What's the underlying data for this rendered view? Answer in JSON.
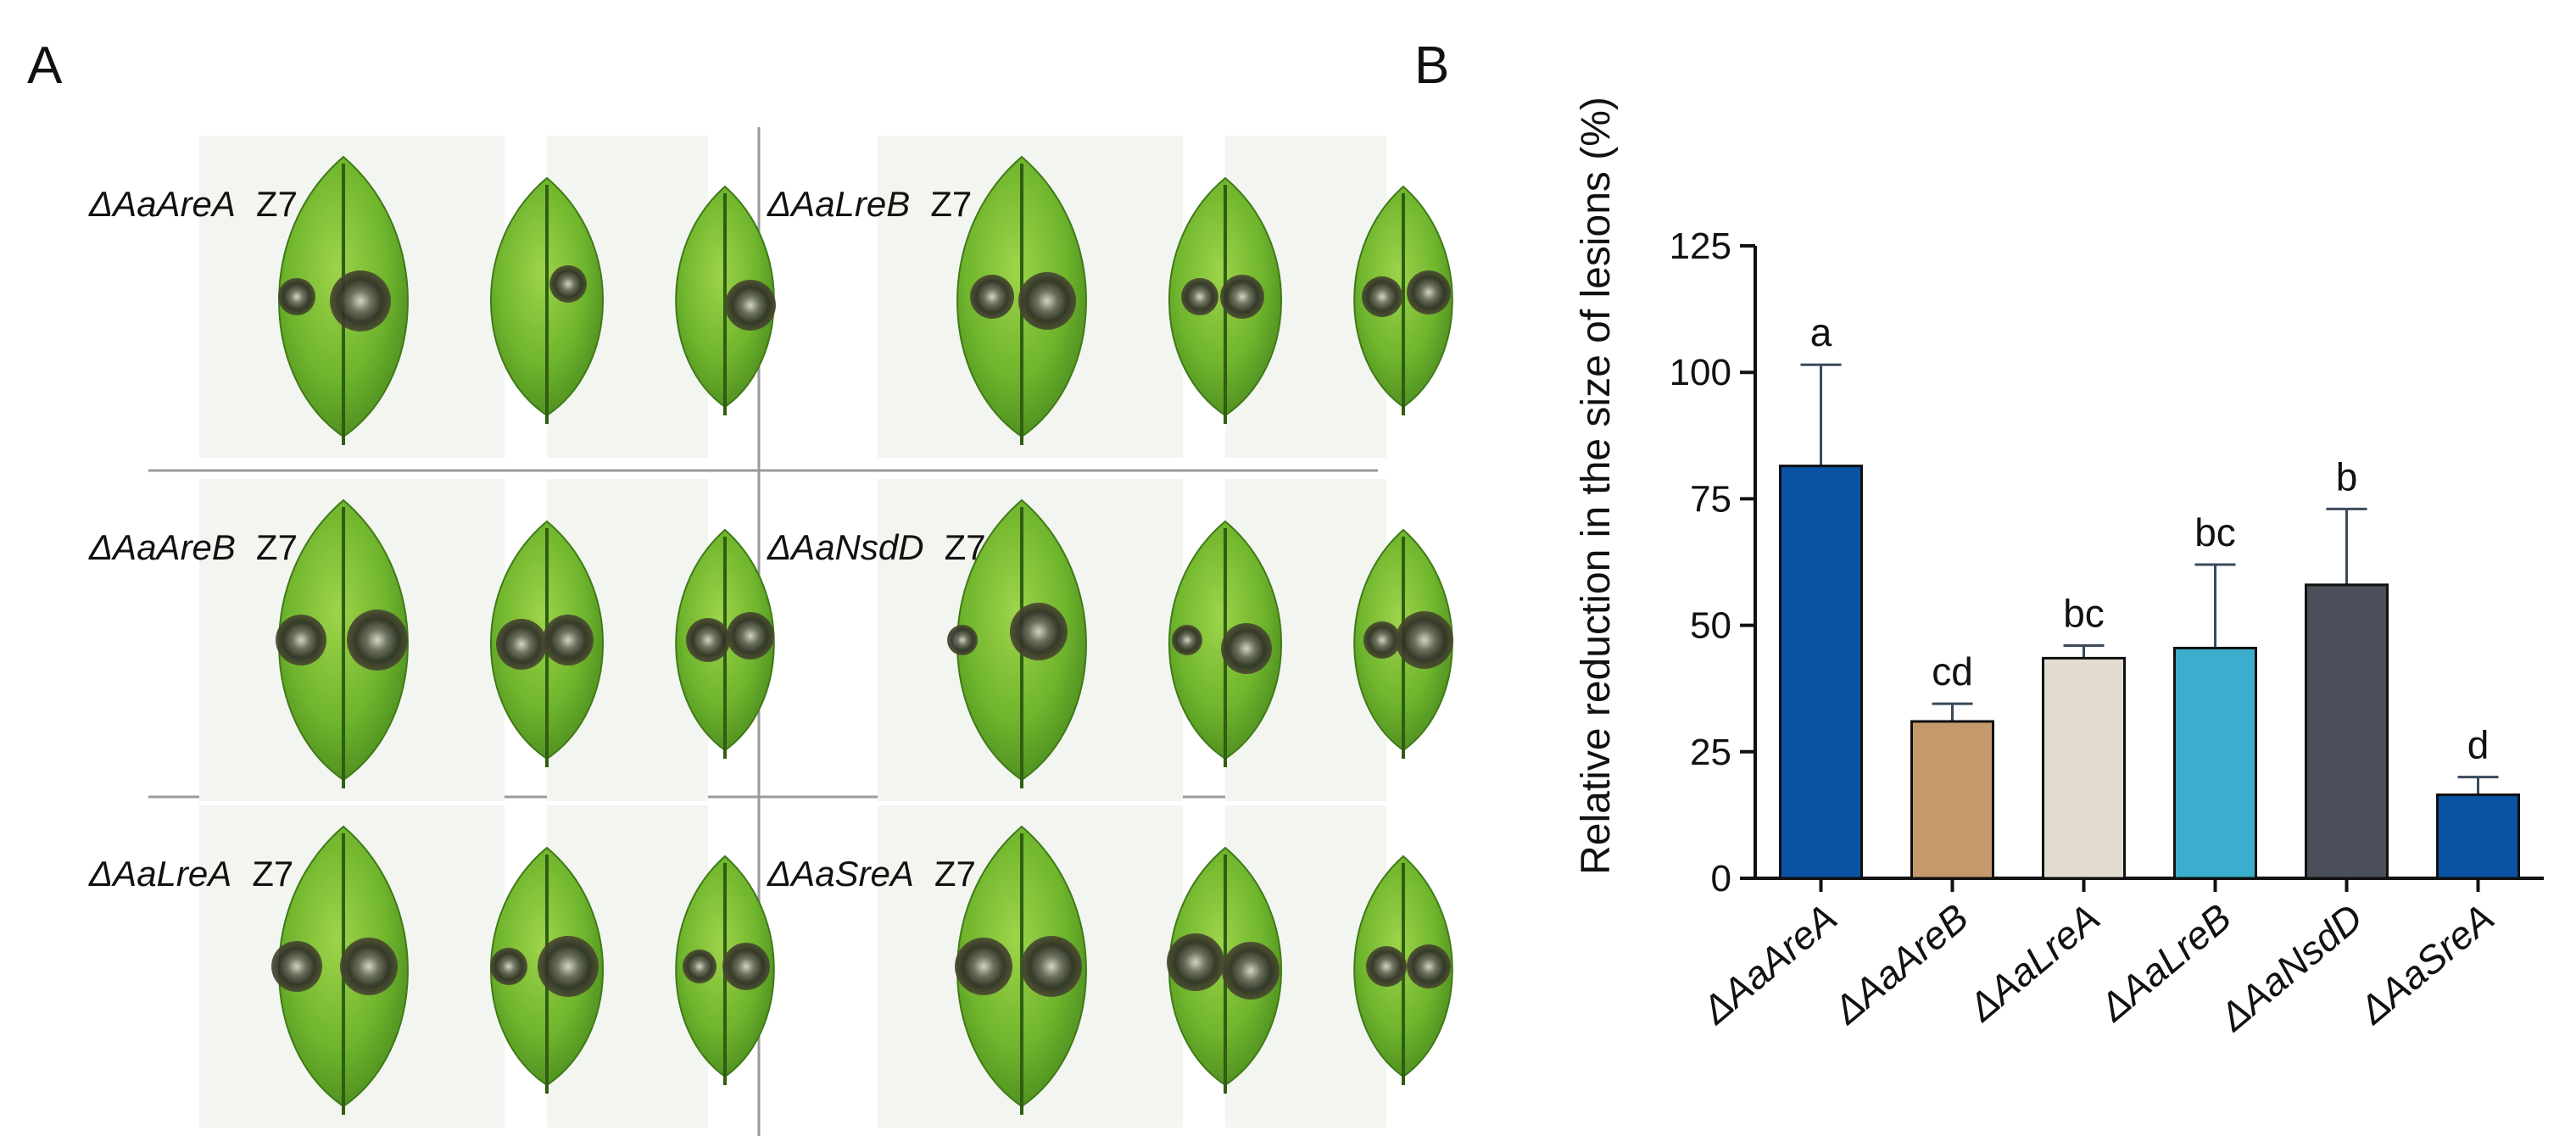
{
  "panel_a": {
    "letter": "A",
    "control_label": "Z7",
    "mutants": [
      "ΔAaAreA",
      "ΔAaLreB",
      "ΔAaAreB",
      "ΔAaNsdD",
      "ΔAaLreA",
      "ΔAaSreA"
    ]
  },
  "panel_b": {
    "letter": "B"
  },
  "chart_data": {
    "type": "bar",
    "title": "",
    "xlabel": "",
    "ylabel": "Relative reduction in the size of lesions (%)",
    "ylim": [
      0,
      125
    ],
    "yticks": [
      0,
      25,
      50,
      75,
      100,
      125
    ],
    "categories": [
      "ΔAaAreA",
      "ΔAaAreB",
      "ΔAaLreA",
      "ΔAaLreB",
      "ΔAaNsdD",
      "ΔAaSreA"
    ],
    "values": [
      81.5,
      31,
      43.5,
      45.5,
      58,
      16.5
    ],
    "errors": [
      20,
      3.5,
      2.5,
      16.5,
      15,
      3.5
    ],
    "significance": [
      "a",
      "cd",
      "bc",
      "bc",
      "b",
      "d"
    ],
    "colors": [
      "#0a52a3",
      "#c49a6c",
      "#e2ddd0",
      "#3aaecc",
      "#4a4f59",
      "#0a52a3"
    ],
    "grid": false,
    "legend": "none"
  }
}
